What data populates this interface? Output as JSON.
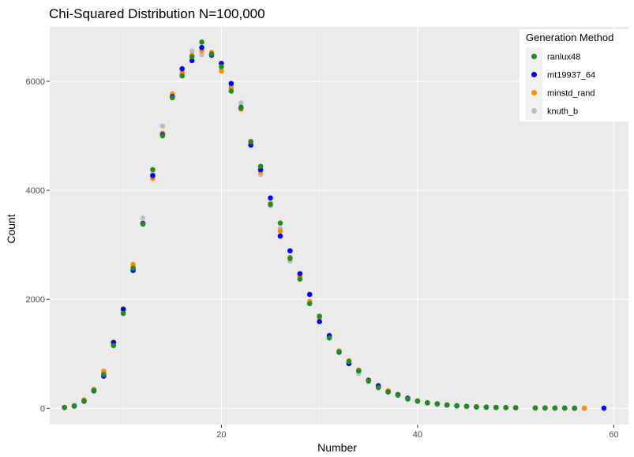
{
  "chart_data": {
    "type": "scatter",
    "title": "Chi-Squared Distribution N=100,000",
    "xlabel": "Number",
    "ylabel": "Count",
    "xlim": [
      2.5,
      61.5
    ],
    "ylim": [
      -300,
      7000
    ],
    "xticks": [
      20,
      40,
      60
    ],
    "yticks": [
      0,
      2000,
      4000,
      6000
    ],
    "x_minor_gridlines": [
      10,
      30,
      50
    ],
    "y_minor_gridlines": [
      1000,
      3000,
      5000
    ],
    "grid": true,
    "legend": {
      "title": "Generation Method",
      "position": "top-right"
    },
    "series": [
      {
        "name": "knuth_b",
        "color": "#bebebe",
        "points": [
          [
            4,
            15
          ],
          [
            5,
            45
          ],
          [
            6,
            140
          ],
          [
            7,
            330
          ],
          [
            8,
            650
          ],
          [
            9,
            1210
          ],
          [
            10,
            1800
          ],
          [
            11,
            2600
          ],
          [
            12,
            3490
          ],
          [
            13,
            4300
          ],
          [
            14,
            5180
          ],
          [
            15,
            5710
          ],
          [
            16,
            6150
          ],
          [
            17,
            6560
          ],
          [
            18,
            6490
          ],
          [
            19,
            6510
          ],
          [
            20,
            6200
          ],
          [
            21,
            5920
          ],
          [
            22,
            5600
          ],
          [
            23,
            4870
          ],
          [
            24,
            4290
          ],
          [
            25,
            3720
          ],
          [
            26,
            3300
          ],
          [
            27,
            2700
          ],
          [
            28,
            2400
          ],
          [
            29,
            1950
          ],
          [
            30,
            1650
          ],
          [
            31,
            1320
          ],
          [
            32,
            1040
          ],
          [
            33,
            860
          ],
          [
            34,
            640
          ],
          [
            35,
            500
          ],
          [
            36,
            400
          ],
          [
            37,
            320
          ],
          [
            38,
            240
          ],
          [
            39,
            180
          ],
          [
            40,
            130
          ],
          [
            41,
            100
          ],
          [
            42,
            80
          ],
          [
            43,
            60
          ],
          [
            44,
            45
          ],
          [
            45,
            35
          ],
          [
            46,
            25
          ],
          [
            47,
            20
          ],
          [
            48,
            15
          ],
          [
            49,
            12
          ],
          [
            50,
            10
          ],
          [
            52,
            6
          ],
          [
            53,
            5
          ],
          [
            54,
            4
          ],
          [
            55,
            3
          ],
          [
            56,
            2
          ],
          [
            57,
            2
          ]
        ]
      },
      {
        "name": "minstd_rand",
        "color": "#ff8c00",
        "points": [
          [
            4,
            12
          ],
          [
            5,
            50
          ],
          [
            6,
            155
          ],
          [
            7,
            345
          ],
          [
            8,
            680
          ],
          [
            9,
            1170
          ],
          [
            10,
            1760
          ],
          [
            11,
            2640
          ],
          [
            12,
            3400
          ],
          [
            13,
            4220
          ],
          [
            14,
            5050
          ],
          [
            15,
            5770
          ],
          [
            16,
            6160
          ],
          [
            17,
            6480
          ],
          [
            18,
            6560
          ],
          [
            19,
            6530
          ],
          [
            20,
            6190
          ],
          [
            21,
            5880
          ],
          [
            22,
            5490
          ],
          [
            23,
            4900
          ],
          [
            24,
            4340
          ],
          [
            25,
            3760
          ],
          [
            26,
            3250
          ],
          [
            27,
            2770
          ],
          [
            28,
            2420
          ],
          [
            29,
            1960
          ],
          [
            30,
            1660
          ],
          [
            31,
            1340
          ],
          [
            32,
            1050
          ],
          [
            33,
            870
          ],
          [
            34,
            700
          ],
          [
            35,
            520
          ],
          [
            36,
            420
          ],
          [
            37,
            320
          ],
          [
            38,
            250
          ],
          [
            39,
            190
          ],
          [
            40,
            140
          ],
          [
            41,
            105
          ],
          [
            42,
            85
          ],
          [
            43,
            65
          ],
          [
            44,
            50
          ],
          [
            45,
            40
          ],
          [
            46,
            30
          ],
          [
            47,
            22
          ],
          [
            48,
            18
          ],
          [
            49,
            14
          ],
          [
            50,
            11
          ],
          [
            52,
            7
          ],
          [
            53,
            6
          ],
          [
            54,
            5
          ],
          [
            55,
            4
          ],
          [
            56,
            3
          ],
          [
            57,
            2
          ]
        ]
      },
      {
        "name": "mt19937_64",
        "color": "#0000ff",
        "points": [
          [
            4,
            15
          ],
          [
            5,
            40
          ],
          [
            6,
            130
          ],
          [
            7,
            320
          ],
          [
            8,
            590
          ],
          [
            9,
            1210
          ],
          [
            10,
            1820
          ],
          [
            11,
            2530
          ],
          [
            12,
            3390
          ],
          [
            13,
            4270
          ],
          [
            14,
            5020
          ],
          [
            15,
            5720
          ],
          [
            16,
            6230
          ],
          [
            17,
            6380
          ],
          [
            18,
            6620
          ],
          [
            19,
            6480
          ],
          [
            20,
            6330
          ],
          [
            21,
            5960
          ],
          [
            22,
            5520
          ],
          [
            23,
            4830
          ],
          [
            24,
            4380
          ],
          [
            25,
            3860
          ],
          [
            26,
            3160
          ],
          [
            27,
            2890
          ],
          [
            28,
            2470
          ],
          [
            29,
            2090
          ],
          [
            30,
            1590
          ],
          [
            31,
            1330
          ],
          [
            32,
            1030
          ],
          [
            33,
            820
          ],
          [
            34,
            690
          ],
          [
            35,
            510
          ],
          [
            36,
            410
          ],
          [
            37,
            300
          ],
          [
            38,
            250
          ],
          [
            39,
            180
          ],
          [
            40,
            130
          ],
          [
            41,
            100
          ],
          [
            42,
            80
          ],
          [
            43,
            60
          ],
          [
            44,
            45
          ],
          [
            45,
            35
          ],
          [
            46,
            25
          ],
          [
            47,
            20
          ],
          [
            48,
            15
          ],
          [
            49,
            12
          ],
          [
            50,
            10
          ],
          [
            52,
            6
          ],
          [
            53,
            5
          ],
          [
            54,
            4
          ],
          [
            55,
            3
          ],
          [
            56,
            2
          ],
          [
            59,
            1
          ]
        ]
      },
      {
        "name": "ranlux48",
        "color": "#228b22",
        "points": [
          [
            4,
            14
          ],
          [
            5,
            45
          ],
          [
            6,
            135
          ],
          [
            7,
            330
          ],
          [
            8,
            620
          ],
          [
            9,
            1150
          ],
          [
            10,
            1740
          ],
          [
            11,
            2570
          ],
          [
            12,
            3380
          ],
          [
            13,
            4380
          ],
          [
            14,
            5000
          ],
          [
            15,
            5700
          ],
          [
            16,
            6100
          ],
          [
            17,
            6450
          ],
          [
            18,
            6720
          ],
          [
            19,
            6500
          ],
          [
            20,
            6270
          ],
          [
            21,
            5820
          ],
          [
            22,
            5510
          ],
          [
            23,
            4890
          ],
          [
            24,
            4440
          ],
          [
            25,
            3740
          ],
          [
            26,
            3400
          ],
          [
            27,
            2750
          ],
          [
            28,
            2370
          ],
          [
            29,
            1920
          ],
          [
            30,
            1690
          ],
          [
            31,
            1290
          ],
          [
            32,
            1040
          ],
          [
            33,
            860
          ],
          [
            34,
            690
          ],
          [
            35,
            500
          ],
          [
            36,
            380
          ],
          [
            37,
            300
          ],
          [
            38,
            240
          ],
          [
            39,
            170
          ],
          [
            40,
            130
          ],
          [
            41,
            100
          ],
          [
            42,
            80
          ],
          [
            43,
            60
          ],
          [
            44,
            45
          ],
          [
            45,
            35
          ],
          [
            46,
            25
          ],
          [
            47,
            20
          ],
          [
            48,
            15
          ],
          [
            49,
            12
          ],
          [
            50,
            10
          ],
          [
            52,
            6
          ],
          [
            53,
            5
          ],
          [
            54,
            4
          ],
          [
            55,
            3
          ],
          [
            56,
            2
          ]
        ]
      }
    ],
    "legend_entries": [
      {
        "name": "ranlux48",
        "color": "#228b22"
      },
      {
        "name": "mt19937_64",
        "color": "#0000ff"
      },
      {
        "name": "minstd_rand",
        "color": "#ff8c00"
      },
      {
        "name": "knuth_b",
        "color": "#bebebe"
      }
    ]
  },
  "colors": {
    "panel_background": "#ebebeb",
    "grid_major": "#ffffff",
    "grid_minor": "#f5f5f5",
    "legend_key_background": "#f2f2f2"
  }
}
